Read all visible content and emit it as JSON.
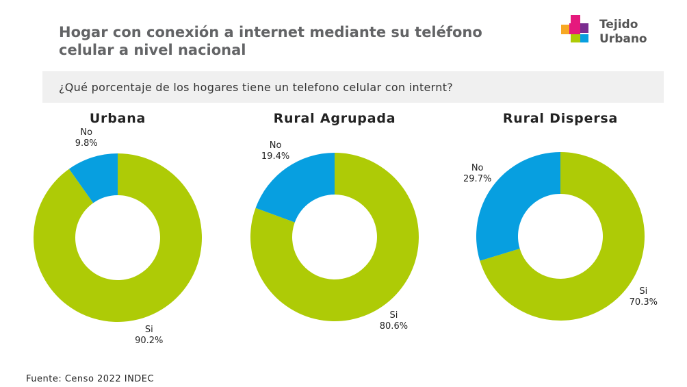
{
  "title": "Hogar con conexión a internet mediante su teléfono celular a nivel nacional",
  "question": "¿Qué porcentaje de los hogares tiene un telefono celular con internt?",
  "logo": {
    "line1": "Tejido",
    "line2": "Urbano"
  },
  "source": "Fuente: Censo 2022 INDEC",
  "chart_data": [
    {
      "type": "pie",
      "donut": true,
      "title": "Urbana",
      "categories": [
        "Si",
        "No"
      ],
      "values": [
        90.2,
        9.8
      ],
      "value_labels": [
        "90.2%",
        "9.8%"
      ],
      "colors": [
        "#aecb06",
        "#079fe0"
      ]
    },
    {
      "type": "pie",
      "donut": true,
      "title": "Rural Agrupada",
      "categories": [
        "Si",
        "No"
      ],
      "values": [
        80.6,
        19.4
      ],
      "value_labels": [
        "80.6%",
        "19.4%"
      ],
      "colors": [
        "#aecb06",
        "#079fe0"
      ]
    },
    {
      "type": "pie",
      "donut": true,
      "title": "Rural Dispersa",
      "categories": [
        "Si",
        "No"
      ],
      "values": [
        70.3,
        29.7
      ],
      "value_labels": [
        "70.3%",
        "29.7%"
      ],
      "colors": [
        "#aecb06",
        "#079fe0"
      ]
    }
  ]
}
